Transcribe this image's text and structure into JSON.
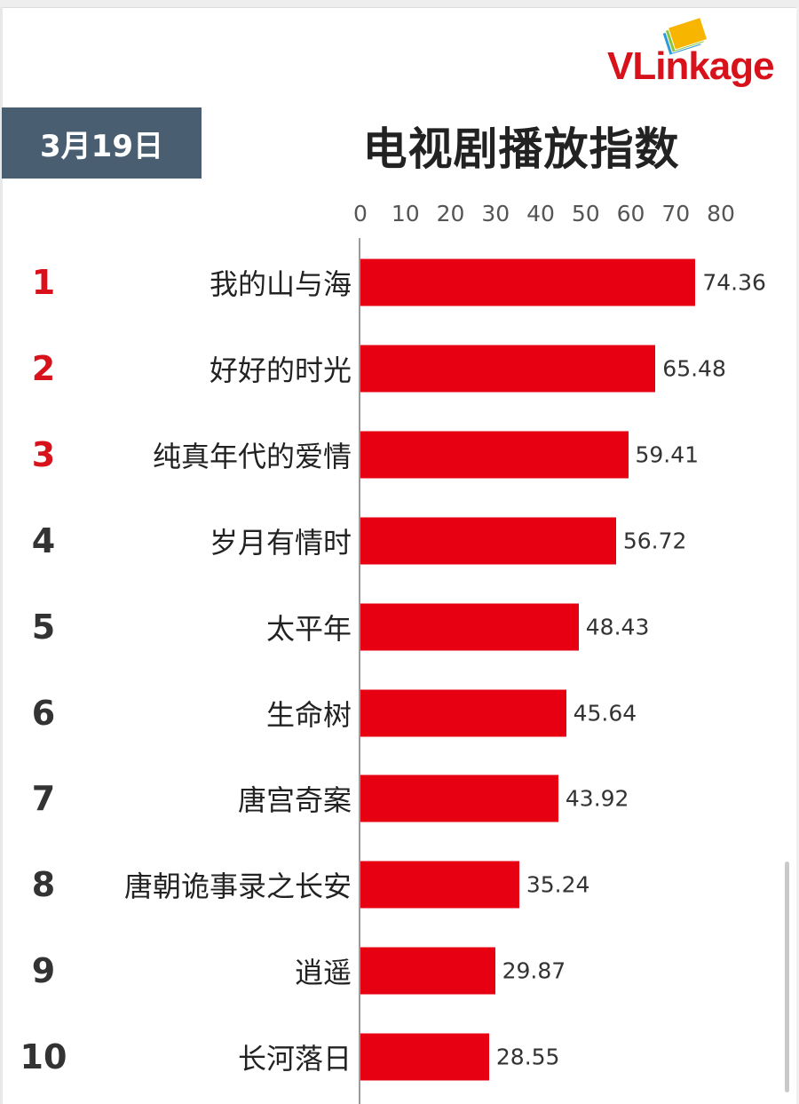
{
  "date_label": "3月19日",
  "logo": {
    "text_v": "VL",
    "text_rest": "inkage"
  },
  "chart_data": {
    "type": "bar",
    "orientation": "horizontal",
    "title": "电视剧播放指数",
    "xlim": [
      0,
      80
    ],
    "ticks": [
      0,
      10,
      20,
      30,
      40,
      50,
      60,
      70,
      80
    ],
    "ranks": [
      "1",
      "2",
      "3",
      "4",
      "5",
      "6",
      "7",
      "8",
      "9",
      "10"
    ],
    "categories": [
      "我的山与海",
      "好好的时光",
      "纯真年代的爱情",
      "岁月有情时",
      "太平年",
      "生命树",
      "唐宫奇案",
      "唐朝诡事录之长安",
      "逍遥",
      "长河落日"
    ],
    "values": [
      74.36,
      65.48,
      59.41,
      56.72,
      48.43,
      45.64,
      43.92,
      35.24,
      29.87,
      28.55
    ],
    "value_labels": [
      "74.36",
      "65.48",
      "59.41",
      "56.72",
      "48.43",
      "45.64",
      "43.92",
      "35.24",
      "29.87",
      "28.55"
    ],
    "bar_color": "#e60012",
    "highlight_rank_color": "#d8121b",
    "rank_color": "#333333",
    "grid": false
  }
}
